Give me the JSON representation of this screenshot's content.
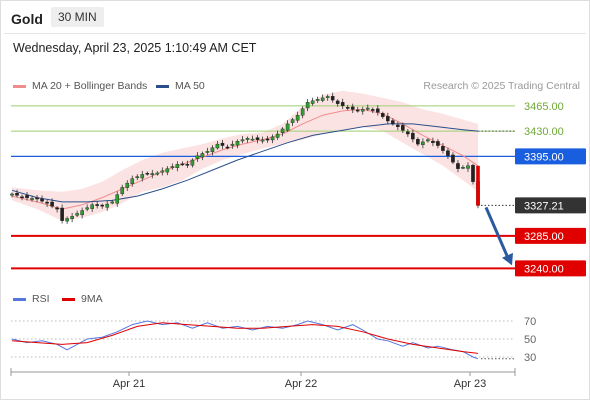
{
  "header": {
    "instrument": "Gold",
    "timeframe": "30 MIN",
    "datetime": "Wednesday, April 23, 2025 1:10:49 AM CET"
  },
  "legend": {
    "ma20": "MA 20 + Bollinger Bands",
    "ma50": "MA 50",
    "ma20_color": "#f08c8c",
    "ma50_color": "#2a4f8c",
    "credit": "Research © 2025 Trading Central"
  },
  "rsi_legend": {
    "rsi": "RSI",
    "ma9": "9MA",
    "rsi_color": "#5577dd",
    "ma9_color": "#e00000"
  },
  "chart_data": {
    "type": "candlestick",
    "title": "Gold",
    "ylim": [
      3210,
      3480
    ],
    "x_ticks": [
      "Apr 21",
      "Apr 22",
      "Apr 23"
    ],
    "levels": [
      {
        "value": 3465.0,
        "label": "3465.00",
        "style": "resistance-thin",
        "color": "#9ccf6e"
      },
      {
        "value": 3430.0,
        "label": "3430.00",
        "style": "resistance-thin",
        "color": "#9ccf6e"
      },
      {
        "value": 3395.0,
        "label": "3395.00",
        "style": "pivot",
        "color": "#1a5ee0"
      },
      {
        "value": 3285.0,
        "label": "3285.00",
        "style": "support",
        "color": "#e00000"
      },
      {
        "value": 3240.0,
        "label": "3240.00",
        "style": "support",
        "color": "#e00000"
      }
    ],
    "last_price": {
      "value": 3327.21,
      "label": "3327.21"
    },
    "arrow": {
      "direction": "down",
      "to": 3240.0,
      "color": "#2a5aa0"
    },
    "close_path": [
      [
        0,
        3343
      ],
      [
        5,
        3338
      ],
      [
        10,
        3336
      ],
      [
        14,
        3330
      ],
      [
        18,
        3322
      ],
      [
        20,
        3306
      ],
      [
        24,
        3312
      ],
      [
        28,
        3320
      ],
      [
        32,
        3328
      ],
      [
        36,
        3326
      ],
      [
        40,
        3332
      ],
      [
        44,
        3352
      ],
      [
        48,
        3364
      ],
      [
        52,
        3370
      ],
      [
        58,
        3372
      ],
      [
        62,
        3378
      ],
      [
        66,
        3384
      ],
      [
        70,
        3384
      ],
      [
        74,
        3396
      ],
      [
        78,
        3402
      ],
      [
        82,
        3412
      ],
      [
        86,
        3408
      ],
      [
        90,
        3416
      ],
      [
        94,
        3420
      ],
      [
        98,
        3418
      ],
      [
        102,
        3418
      ],
      [
        106,
        3426
      ],
      [
        110,
        3440
      ],
      [
        114,
        3452
      ],
      [
        118,
        3470
      ],
      [
        122,
        3474
      ],
      [
        126,
        3478
      ],
      [
        130,
        3468
      ],
      [
        134,
        3462
      ],
      [
        138,
        3458
      ],
      [
        142,
        3462
      ],
      [
        146,
        3456
      ],
      [
        150,
        3444
      ],
      [
        154,
        3436
      ],
      [
        158,
        3426
      ],
      [
        162,
        3412
      ],
      [
        166,
        3418
      ],
      [
        170,
        3410
      ],
      [
        174,
        3396
      ],
      [
        178,
        3378
      ],
      [
        182,
        3382
      ],
      [
        184,
        3360
      ],
      [
        186,
        3327
      ]
    ],
    "ma20": [
      [
        0,
        3340
      ],
      [
        10,
        3332
      ],
      [
        20,
        3322
      ],
      [
        28,
        3328
      ],
      [
        36,
        3338
      ],
      [
        44,
        3350
      ],
      [
        52,
        3362
      ],
      [
        60,
        3374
      ],
      [
        68,
        3384
      ],
      [
        76,
        3394
      ],
      [
        84,
        3404
      ],
      [
        92,
        3412
      ],
      [
        100,
        3418
      ],
      [
        108,
        3426
      ],
      [
        116,
        3440
      ],
      [
        124,
        3452
      ],
      [
        132,
        3458
      ],
      [
        140,
        3460
      ],
      [
        148,
        3454
      ],
      [
        156,
        3440
      ],
      [
        164,
        3424
      ],
      [
        172,
        3410
      ],
      [
        180,
        3396
      ],
      [
        186,
        3382
      ]
    ],
    "boll_upper": [
      [
        0,
        3352
      ],
      [
        10,
        3348
      ],
      [
        20,
        3346
      ],
      [
        28,
        3350
      ],
      [
        36,
        3360
      ],
      [
        44,
        3376
      ],
      [
        52,
        3390
      ],
      [
        60,
        3400
      ],
      [
        68,
        3406
      ],
      [
        76,
        3412
      ],
      [
        84,
        3420
      ],
      [
        92,
        3426
      ],
      [
        100,
        3428
      ],
      [
        108,
        3440
      ],
      [
        116,
        3464
      ],
      [
        124,
        3480
      ],
      [
        132,
        3486
      ],
      [
        140,
        3482
      ],
      [
        148,
        3476
      ],
      [
        156,
        3470
      ],
      [
        164,
        3460
      ],
      [
        172,
        3454
      ],
      [
        180,
        3446
      ],
      [
        186,
        3440
      ]
    ],
    "boll_lower": [
      [
        0,
        3334
      ],
      [
        10,
        3322
      ],
      [
        20,
        3306
      ],
      [
        28,
        3310
      ],
      [
        36,
        3318
      ],
      [
        44,
        3330
      ],
      [
        52,
        3346
      ],
      [
        60,
        3352
      ],
      [
        68,
        3362
      ],
      [
        76,
        3378
      ],
      [
        84,
        3390
      ],
      [
        92,
        3398
      ],
      [
        100,
        3406
      ],
      [
        108,
        3412
      ],
      [
        116,
        3418
      ],
      [
        124,
        3426
      ],
      [
        132,
        3432
      ],
      [
        140,
        3436
      ],
      [
        148,
        3430
      ],
      [
        156,
        3414
      ],
      [
        164,
        3398
      ],
      [
        172,
        3382
      ],
      [
        180,
        3362
      ],
      [
        186,
        3346
      ]
    ],
    "ma50": [
      [
        0,
        3348
      ],
      [
        10,
        3338
      ],
      [
        20,
        3332
      ],
      [
        30,
        3332
      ],
      [
        40,
        3334
      ],
      [
        50,
        3340
      ],
      [
        60,
        3350
      ],
      [
        70,
        3362
      ],
      [
        80,
        3376
      ],
      [
        90,
        3390
      ],
      [
        100,
        3402
      ],
      [
        110,
        3414
      ],
      [
        120,
        3424
      ],
      [
        130,
        3430
      ],
      [
        140,
        3436
      ],
      [
        150,
        3440
      ],
      [
        160,
        3440
      ],
      [
        170,
        3436
      ],
      [
        180,
        3432
      ],
      [
        186,
        3430
      ]
    ],
    "rsi": {
      "ylim": [
        20,
        80
      ],
      "ticks": [
        70,
        50,
        30
      ],
      "rsi": [
        [
          0,
          50
        ],
        [
          6,
          46
        ],
        [
          12,
          48
        ],
        [
          18,
          44
        ],
        [
          22,
          38
        ],
        [
          26,
          44
        ],
        [
          30,
          50
        ],
        [
          36,
          52
        ],
        [
          42,
          58
        ],
        [
          48,
          66
        ],
        [
          54,
          70
        ],
        [
          60,
          66
        ],
        [
          66,
          68
        ],
        [
          72,
          62
        ],
        [
          78,
          68
        ],
        [
          84,
          62
        ],
        [
          90,
          64
        ],
        [
          96,
          60
        ],
        [
          102,
          64
        ],
        [
          108,
          62
        ],
        [
          114,
          66
        ],
        [
          118,
          70
        ],
        [
          124,
          66
        ],
        [
          130,
          60
        ],
        [
          136,
          66
        ],
        [
          140,
          60
        ],
        [
          146,
          50
        ],
        [
          150,
          48
        ],
        [
          156,
          42
        ],
        [
          160,
          46
        ],
        [
          166,
          40
        ],
        [
          170,
          42
        ],
        [
          176,
          38
        ],
        [
          180,
          36
        ],
        [
          184,
          30
        ],
        [
          186,
          28
        ]
      ],
      "ma9": [
        [
          0,
          48
        ],
        [
          10,
          46
        ],
        [
          20,
          44
        ],
        [
          30,
          46
        ],
        [
          40,
          54
        ],
        [
          50,
          64
        ],
        [
          60,
          68
        ],
        [
          70,
          66
        ],
        [
          80,
          64
        ],
        [
          90,
          62
        ],
        [
          100,
          62
        ],
        [
          110,
          64
        ],
        [
          120,
          66
        ],
        [
          130,
          64
        ],
        [
          140,
          58
        ],
        [
          150,
          50
        ],
        [
          160,
          44
        ],
        [
          170,
          40
        ],
        [
          180,
          36
        ],
        [
          186,
          34
        ]
      ]
    }
  }
}
